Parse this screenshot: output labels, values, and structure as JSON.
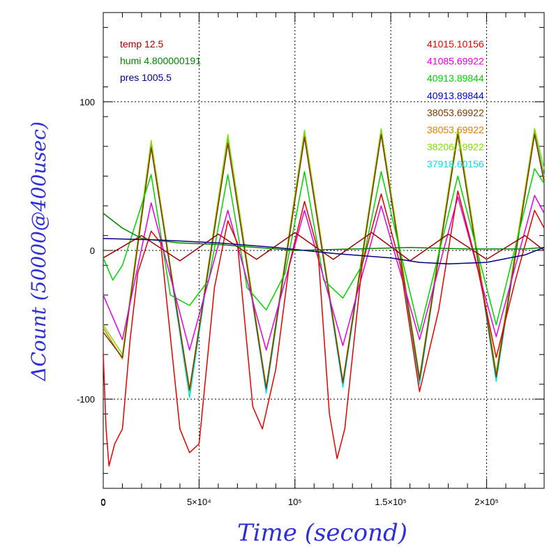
{
  "chart_data": {
    "type": "line",
    "xlabel": "Time (second)",
    "ylabel": "ΔCount (50000@400usec)",
    "xlim": [
      0,
      230000
    ],
    "ylim": [
      -160,
      160
    ],
    "grid": true,
    "x_ticks": [
      {
        "value": 0,
        "label": "0"
      },
      {
        "value": 50000,
        "label": "5×10⁴"
      },
      {
        "value": 100000,
        "label": "10⁵"
      },
      {
        "value": 150000,
        "label": "1.5×10⁵"
      },
      {
        "value": 200000,
        "label": "2×10⁵"
      }
    ],
    "y_ticks": [
      {
        "value": 100,
        "label": "100"
      },
      {
        "value": 0,
        "label": "0"
      },
      {
        "value": -100,
        "label": "-100"
      }
    ],
    "legend_left": [
      {
        "text": "temp 12.5",
        "color": "#a00000"
      },
      {
        "text": "humi 4.800000191",
        "color": "#008000"
      },
      {
        "text": "pres 1005.5",
        "color": "#000080"
      }
    ],
    "legend_right": [
      {
        "text": "41015.10156",
        "color": "#e00000"
      },
      {
        "text": "41085.69922",
        "color": "#e000e0"
      },
      {
        "text": "40913.89844",
        "color": "#00d000"
      },
      {
        "text": "40913.89844",
        "color": "#0000d0"
      },
      {
        "text": "38053.69922",
        "color": "#7a3a00"
      },
      {
        "text": "38053.69922",
        "color": "#e08000"
      },
      {
        "text": "38206.19922",
        "color": "#80e000"
      },
      {
        "text": "37918.60156",
        "color": "#00e0e0"
      }
    ],
    "series": [
      {
        "color": "#00e0e0",
        "x": [
          0,
          10000,
          25000,
          45000,
          65000,
          85000,
          105000,
          125000,
          145000,
          165000,
          185000,
          205000,
          225000,
          230000
        ],
        "values": [
          -55,
          -72,
          72,
          -99,
          75,
          -96,
          78,
          -92,
          80,
          -90,
          81,
          -88,
          80,
          50
        ]
      },
      {
        "color": "#80e000",
        "x": [
          0,
          10000,
          25000,
          45000,
          65000,
          85000,
          105000,
          125000,
          145000,
          165000,
          185000,
          205000,
          225000,
          230000
        ],
        "values": [
          -50,
          -70,
          74,
          -95,
          78,
          -92,
          81,
          -88,
          82,
          -85,
          82,
          -82,
          82,
          55
        ]
      },
      {
        "color": "#e08000",
        "x": [
          0,
          10000,
          25000,
          45000,
          65000,
          85000,
          105000,
          125000,
          145000,
          165000,
          185000,
          205000,
          225000,
          230000
        ],
        "values": [
          -52,
          -73,
          70,
          -93,
          73,
          -92,
          77,
          -88,
          78,
          -86,
          78,
          -84,
          79,
          48
        ]
      },
      {
        "color": "#7a3a00",
        "x": [
          0,
          10000,
          25000,
          45000,
          65000,
          85000,
          105000,
          125000,
          145000,
          165000,
          185000,
          205000,
          225000,
          230000
        ],
        "values": [
          -55,
          -72,
          69,
          -94,
          72,
          -93,
          76,
          -89,
          78,
          -87,
          78,
          -85,
          78,
          46
        ]
      },
      {
        "color": "#00d000",
        "x": [
          0,
          5000,
          10000,
          25000,
          35000,
          45000,
          55000,
          65000,
          75000,
          85000,
          95000,
          105000,
          115000,
          125000,
          135000,
          145000,
          165000,
          185000,
          205000,
          225000,
          230000
        ],
        "values": [
          -5,
          -20,
          -10,
          51,
          -30,
          -37,
          -20,
          51,
          -25,
          -40,
          -15,
          53,
          -20,
          -32,
          -10,
          53,
          -55,
          50,
          -50,
          55,
          45
        ]
      },
      {
        "color": "#e000e0",
        "x": [
          0,
          10000,
          25000,
          45000,
          65000,
          85000,
          105000,
          125000,
          145000,
          165000,
          185000,
          205000,
          225000,
          230000
        ],
        "values": [
          -30,
          -60,
          32,
          -67,
          27,
          -67,
          27,
          -64,
          30,
          -60,
          36,
          -58,
          37,
          25
        ]
      },
      {
        "color": "#e00000",
        "x": [
          0,
          1500,
          3000,
          6000,
          10000,
          14000,
          18000,
          25000,
          30000,
          40000,
          45000,
          50000,
          58000,
          65000,
          70000,
          78000,
          83000,
          90000,
          97000,
          105000,
          112000,
          118000,
          122000,
          126000,
          135000,
          145000,
          155000,
          165000,
          175000,
          185000,
          195000,
          205000,
          215000,
          225000,
          230000
        ],
        "values": [
          -70,
          -120,
          -145,
          -130,
          -120,
          -60,
          -15,
          13,
          5,
          -120,
          -136,
          -130,
          -25,
          20,
          5,
          -105,
          -120,
          -80,
          -10,
          33,
          0,
          -110,
          -140,
          -120,
          -10,
          38,
          -10,
          -95,
          -40,
          40,
          -10,
          -72,
          -20,
          27,
          15
        ]
      },
      {
        "color": "#a00000",
        "x": [
          0,
          20000,
          40000,
          60000,
          80000,
          100000,
          120000,
          140000,
          160000,
          180000,
          200000,
          220000,
          230000
        ],
        "values": [
          -5,
          10,
          -7,
          11,
          -6,
          12,
          -6,
          12,
          -7,
          11,
          -6,
          10,
          0
        ]
      },
      {
        "color": "#008000",
        "x": [
          0,
          5000,
          10000,
          20000,
          40000,
          60000,
          80000,
          100000,
          130000,
          160000,
          190000,
          220000,
          230000
        ],
        "values": [
          25,
          20,
          15,
          8,
          5,
          4,
          2,
          0,
          1,
          2,
          1,
          1,
          2
        ]
      },
      {
        "color": "#000080",
        "x": [
          0,
          30000,
          60000,
          90000,
          120000,
          150000,
          165000,
          180000,
          200000,
          220000,
          230000
        ],
        "values": [
          8,
          7,
          5,
          2,
          -2,
          -5,
          -8,
          -9,
          -8,
          -3,
          2
        ]
      }
    ]
  }
}
